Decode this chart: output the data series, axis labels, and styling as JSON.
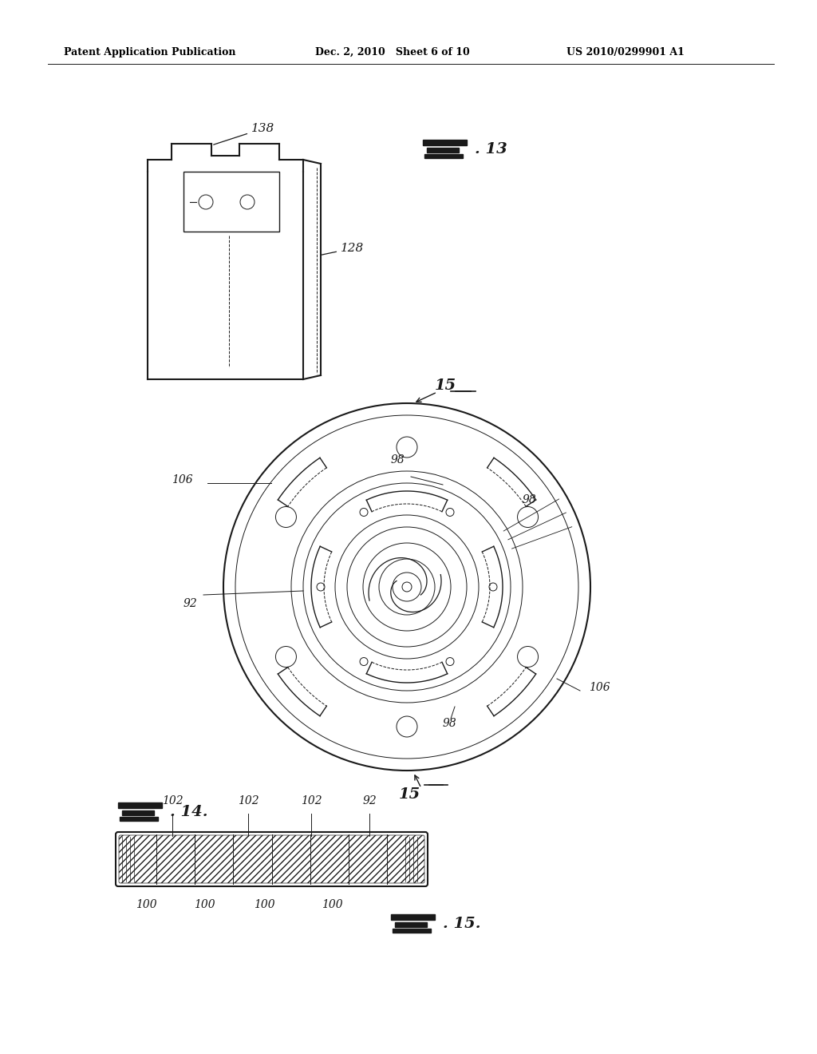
{
  "background_color": "#ffffff",
  "header_left": "Patent Application Publication",
  "header_center": "Dec. 2, 2010   Sheet 6 of 10",
  "header_right": "US 2010/0299901 A1",
  "ref_138": "138",
  "ref_128": "128",
  "ref_15": "15",
  "ref_98": "98",
  "ref_92": "92",
  "ref_106": "106",
  "ref_102": "102",
  "ref_100": "100",
  "line_color": "#1a1a1a"
}
